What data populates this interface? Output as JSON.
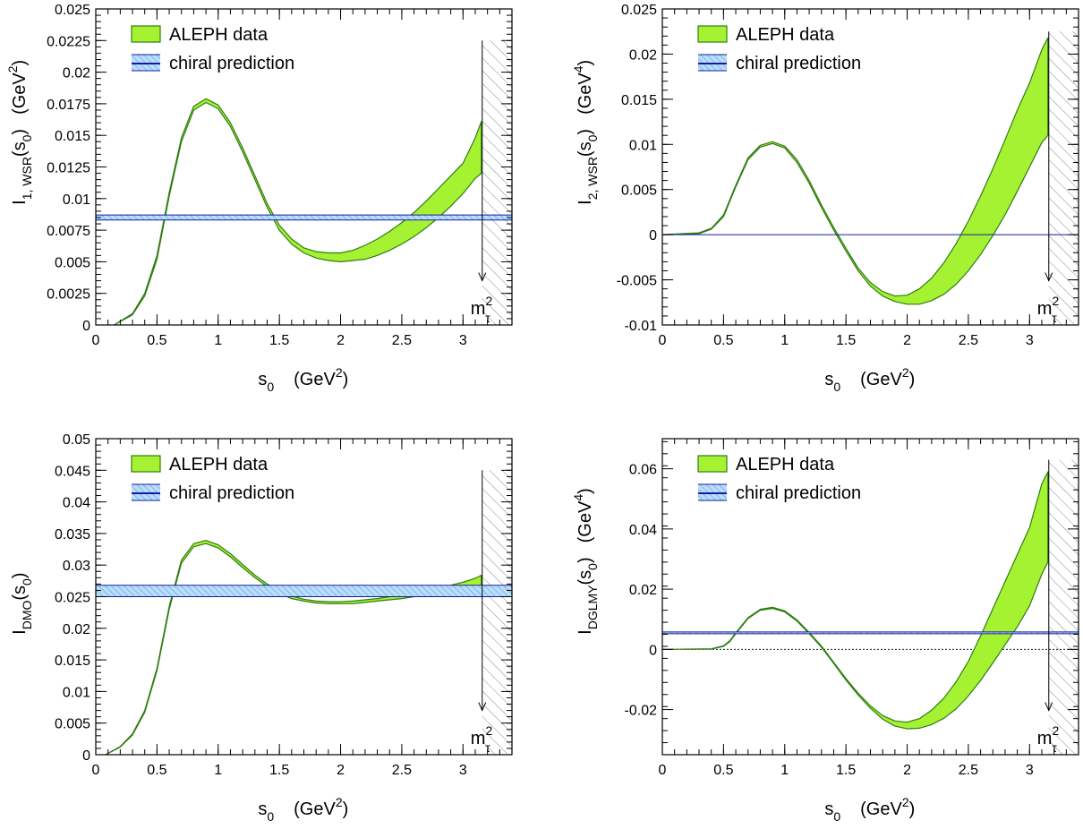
{
  "colors": {
    "band_fill": "#a5f233",
    "band_edge": "#2f7d12",
    "chiral_line": "#1a1a9c",
    "chiral_fill": "#8fc8ff",
    "hatch": "#888888"
  },
  "chart_data": [
    {
      "type": "area",
      "panel": "top-left",
      "ylabel_main": "I",
      "ylabel_sub": "1, WSR",
      "ylabel_arg": "(s",
      "ylabel_arg_sub": "0",
      "ylabel_close": ")",
      "ylabel_unit": "(GeV",
      "ylabel_unit_sup": "2",
      "ylabel_unit_close": ")",
      "xlabel_main": "s",
      "xlabel_sub": "0",
      "xlabel_unit": "(GeV",
      "xlabel_unit_sup": "2",
      "xlabel_unit_close": ")",
      "xlim": [
        0,
        3.4
      ],
      "ylim": [
        0,
        0.025
      ],
      "x_ticks": [
        0,
        0.5,
        1,
        1.5,
        2,
        2.5,
        3
      ],
      "x_tick_labels": [
        "0",
        "0.5",
        "1",
        "1.5",
        "2",
        "2.5",
        "3"
      ],
      "x_minor_step": 0.1,
      "y_ticks": [
        0,
        0.0025,
        0.005,
        0.0075,
        0.01,
        0.0125,
        0.015,
        0.0175,
        0.02,
        0.0225,
        0.025
      ],
      "y_tick_labels": [
        "0",
        "0.0025",
        "0.005",
        "0.0075",
        "0.01",
        "0.0125",
        "0.015",
        "0.0175",
        "0.02",
        "0.0225",
        "0.025"
      ],
      "y_minor_step": 0.0005,
      "legend": {
        "position": "top-left",
        "entries": [
          "ALEPH data",
          "chiral prediction"
        ]
      },
      "series": [
        {
          "name": "ALEPH data",
          "kind": "band",
          "x": [
            0.15,
            0.3,
            0.4,
            0.5,
            0.6,
            0.7,
            0.8,
            0.9,
            1.0,
            1.1,
            1.2,
            1.3,
            1.4,
            1.5,
            1.6,
            1.7,
            1.8,
            1.9,
            2.0,
            2.1,
            2.2,
            2.3,
            2.4,
            2.5,
            2.6,
            2.7,
            2.8,
            2.9,
            3.0,
            3.1,
            3.15
          ],
          "upper": [
            0.0,
            0.0009,
            0.0025,
            0.0055,
            0.0105,
            0.0148,
            0.0173,
            0.0179,
            0.0174,
            0.016,
            0.014,
            0.0118,
            0.0096,
            0.0079,
            0.0068,
            0.0061,
            0.0058,
            0.0057,
            0.0057,
            0.0059,
            0.0063,
            0.0068,
            0.0074,
            0.0081,
            0.0089,
            0.0098,
            0.0108,
            0.0118,
            0.0128,
            0.0148,
            0.0161
          ],
          "lower": [
            0.0,
            0.0008,
            0.0023,
            0.0052,
            0.0102,
            0.0145,
            0.017,
            0.0176,
            0.0171,
            0.0157,
            0.0137,
            0.0115,
            0.0093,
            0.0075,
            0.0064,
            0.0057,
            0.0053,
            0.0051,
            0.005,
            0.0051,
            0.0052,
            0.0055,
            0.0059,
            0.0064,
            0.007,
            0.0077,
            0.0085,
            0.0094,
            0.0104,
            0.0116,
            0.012
          ]
        },
        {
          "name": "chiral prediction",
          "kind": "hband",
          "value": 0.0085,
          "lower": 0.0083,
          "upper": 0.0087
        }
      ],
      "annotation": {
        "text": "m",
        "sup": "2",
        "sub": "τ",
        "x": 3.157,
        "y_top": 0.0225
      }
    },
    {
      "type": "area",
      "panel": "top-right",
      "ylabel_main": "I",
      "ylabel_sub": "2, WSR",
      "ylabel_arg": "(s",
      "ylabel_arg_sub": "0",
      "ylabel_close": ")",
      "ylabel_unit": "(GeV",
      "ylabel_unit_sup": "4",
      "ylabel_unit_close": ")",
      "xlabel_main": "s",
      "xlabel_sub": "0",
      "xlabel_unit": "(GeV",
      "xlabel_unit_sup": "2",
      "xlabel_unit_close": ")",
      "xlim": [
        0,
        3.4
      ],
      "ylim": [
        -0.01,
        0.025
      ],
      "x_ticks": [
        0,
        0.5,
        1,
        1.5,
        2,
        2.5,
        3
      ],
      "x_tick_labels": [
        "0",
        "0.5",
        "1",
        "1.5",
        "2",
        "2.5",
        "3"
      ],
      "x_minor_step": 0.1,
      "y_ticks": [
        -0.01,
        -0.005,
        0,
        0.005,
        0.01,
        0.015,
        0.02,
        0.025
      ],
      "y_tick_labels": [
        "-0.01",
        "-0.005",
        "0",
        "0.005",
        "0.01",
        "0.015",
        "0.02",
        "0.025"
      ],
      "y_minor_step": 0.001,
      "legend": {
        "position": "top-left",
        "entries": [
          "ALEPH data",
          "chiral prediction"
        ]
      },
      "series": [
        {
          "name": "ALEPH data",
          "kind": "band",
          "x": [
            0.0,
            0.3,
            0.4,
            0.5,
            0.6,
            0.7,
            0.8,
            0.9,
            1.0,
            1.1,
            1.2,
            1.3,
            1.4,
            1.5,
            1.6,
            1.7,
            1.8,
            1.9,
            2.0,
            2.1,
            2.2,
            2.3,
            2.4,
            2.5,
            2.6,
            2.7,
            2.8,
            2.9,
            3.0,
            3.1,
            3.15
          ],
          "upper": [
            0.0,
            0.0002,
            0.0007,
            0.0022,
            0.0055,
            0.0085,
            0.0099,
            0.0103,
            0.0098,
            0.0083,
            0.006,
            0.0033,
            0.0008,
            -0.0015,
            -0.0037,
            -0.0053,
            -0.0063,
            -0.0068,
            -0.0067,
            -0.006,
            -0.0048,
            -0.0031,
            -0.001,
            0.0015,
            0.0043,
            0.0073,
            0.0105,
            0.0138,
            0.0168,
            0.0205,
            0.0218
          ],
          "lower": [
            0.0,
            0.0001,
            0.0006,
            0.002,
            0.0053,
            0.0083,
            0.0097,
            0.0101,
            0.0096,
            0.008,
            0.0057,
            0.003,
            0.0005,
            -0.0018,
            -0.004,
            -0.0057,
            -0.0068,
            -0.0074,
            -0.0077,
            -0.0077,
            -0.0073,
            -0.0066,
            -0.0055,
            -0.004,
            -0.0022,
            -0.0001,
            0.0022,
            0.0048,
            0.0075,
            0.0102,
            0.011
          ]
        },
        {
          "name": "chiral prediction",
          "kind": "hband",
          "value": 0.0,
          "lower": 0.0,
          "upper": 0.0
        }
      ],
      "annotation": {
        "text": "m",
        "sup": "2",
        "sub": "τ",
        "x": 3.157,
        "y_top": 0.0225
      }
    },
    {
      "type": "area",
      "panel": "bottom-left",
      "ylabel_main": "I",
      "ylabel_sub": "DMO",
      "ylabel_arg": "(s",
      "ylabel_arg_sub": "0",
      "ylabel_close": ")",
      "ylabel_unit": "",
      "ylabel_unit_sup": "",
      "ylabel_unit_close": "",
      "xlabel_main": "s",
      "xlabel_sub": "0",
      "xlabel_unit": "(GeV",
      "xlabel_unit_sup": "2",
      "xlabel_unit_close": ")",
      "xlim": [
        0,
        3.4
      ],
      "ylim": [
        0,
        0.05
      ],
      "x_ticks": [
        0,
        0.5,
        1,
        1.5,
        2,
        2.5,
        3
      ],
      "x_tick_labels": [
        "0",
        "0.5",
        "1",
        "1.5",
        "2",
        "2.5",
        "3"
      ],
      "x_minor_step": 0.1,
      "y_ticks": [
        0,
        0.005,
        0.01,
        0.015,
        0.02,
        0.025,
        0.03,
        0.035,
        0.04,
        0.045,
        0.05
      ],
      "y_tick_labels": [
        "0",
        "0.005",
        "0.01",
        "0.015",
        "0.02",
        "0.025",
        "0.03",
        "0.035",
        "0.04",
        "0.045",
        "0.05"
      ],
      "y_minor_step": 0.001,
      "legend": {
        "position": "top-left",
        "entries": [
          "ALEPH data",
          "chiral prediction"
        ]
      },
      "series": [
        {
          "name": "ALEPH data",
          "kind": "band",
          "x": [
            0.08,
            0.2,
            0.3,
            0.4,
            0.5,
            0.6,
            0.7,
            0.8,
            0.9,
            1.0,
            1.1,
            1.2,
            1.3,
            1.4,
            1.5,
            1.6,
            1.7,
            1.8,
            1.9,
            2.0,
            2.1,
            2.2,
            2.3,
            2.4,
            2.5,
            2.6,
            2.7,
            2.8,
            2.9,
            3.0,
            3.1,
            3.15
          ],
          "upper": [
            0.0,
            0.0013,
            0.0033,
            0.007,
            0.0137,
            0.0235,
            0.0308,
            0.0334,
            0.0339,
            0.0332,
            0.0318,
            0.0301,
            0.0284,
            0.027,
            0.0259,
            0.0251,
            0.0246,
            0.0243,
            0.0242,
            0.0242,
            0.0243,
            0.0245,
            0.0247,
            0.025,
            0.0253,
            0.0256,
            0.026,
            0.0264,
            0.0268,
            0.0273,
            0.0279,
            0.0284
          ],
          "lower": [
            0.0,
            0.0012,
            0.0031,
            0.0067,
            0.0133,
            0.023,
            0.0303,
            0.0329,
            0.0334,
            0.0327,
            0.0313,
            0.0296,
            0.028,
            0.0266,
            0.0255,
            0.0247,
            0.0243,
            0.024,
            0.0239,
            0.0239,
            0.0239,
            0.0241,
            0.0243,
            0.0245,
            0.0247,
            0.025,
            0.0253,
            0.0256,
            0.0259,
            0.0262,
            0.0265,
            0.0266
          ]
        },
        {
          "name": "chiral prediction",
          "kind": "hband",
          "value": 0.0258,
          "lower": 0.025,
          "upper": 0.0268
        }
      ],
      "annotation": {
        "text": "m",
        "sup": "2",
        "sub": "τ",
        "x": 3.157,
        "y_top": 0.045
      }
    },
    {
      "type": "area",
      "panel": "bottom-right",
      "ylabel_main": "I",
      "ylabel_sub": "DGLMY",
      "ylabel_arg": "(s",
      "ylabel_arg_sub": "0",
      "ylabel_close": ")",
      "ylabel_unit": "(GeV",
      "ylabel_unit_sup": "4",
      "ylabel_unit_close": ")",
      "xlabel_main": "s",
      "xlabel_sub": "0",
      "xlabel_unit": "(GeV",
      "xlabel_unit_sup": "2",
      "xlabel_unit_close": ")",
      "xlim": [
        0,
        3.4
      ],
      "ylim": [
        -0.035,
        0.07
      ],
      "x_ticks": [
        0,
        0.5,
        1,
        1.5,
        2,
        2.5,
        3
      ],
      "x_tick_labels": [
        "0",
        "0.5",
        "1",
        "1.5",
        "2",
        "2.5",
        "3"
      ],
      "x_minor_step": 0.1,
      "y_ticks": [
        -0.02,
        0,
        0.02,
        0.04,
        0.06
      ],
      "y_tick_labels": [
        "-0.02",
        "0",
        "0.02",
        "0.04",
        "0.06"
      ],
      "y_minor_step": 0.004,
      "legend": {
        "position": "top-left",
        "entries": [
          "ALEPH data",
          "chiral prediction"
        ]
      },
      "zero_line": true,
      "series": [
        {
          "name": "ALEPH data",
          "kind": "band",
          "x": [
            0.0,
            0.4,
            0.5,
            0.55,
            0.6,
            0.7,
            0.8,
            0.9,
            1.0,
            1.1,
            1.2,
            1.3,
            1.4,
            1.5,
            1.6,
            1.7,
            1.8,
            1.9,
            2.0,
            2.1,
            2.2,
            2.3,
            2.4,
            2.5,
            2.6,
            2.7,
            2.8,
            2.9,
            3.0,
            3.1,
            3.15
          ],
          "upper": [
            0.0,
            0.0002,
            0.0012,
            0.0028,
            0.0055,
            0.0105,
            0.0133,
            0.014,
            0.0128,
            0.0098,
            0.0056,
            0.0011,
            -0.0043,
            -0.0097,
            -0.0146,
            -0.0188,
            -0.022,
            -0.0238,
            -0.0242,
            -0.023,
            -0.0202,
            -0.0162,
            -0.0108,
            -0.004,
            0.0045,
            0.0135,
            0.0225,
            0.0315,
            0.0405,
            0.055,
            0.059
          ],
          "lower": [
            0.0,
            0.0001,
            0.001,
            0.0025,
            0.0052,
            0.0102,
            0.013,
            0.0136,
            0.0124,
            0.0094,
            0.0052,
            0.0007,
            -0.0047,
            -0.0102,
            -0.0152,
            -0.0196,
            -0.0232,
            -0.0255,
            -0.0264,
            -0.0262,
            -0.025,
            -0.0229,
            -0.0198,
            -0.0155,
            -0.0103,
            -0.0045,
            0.0015,
            0.0075,
            0.0145,
            0.025,
            0.029
          ]
        },
        {
          "name": "chiral prediction",
          "kind": "hband",
          "value": 0.0055,
          "lower": 0.0052,
          "upper": 0.0058
        }
      ],
      "annotation": {
        "text": "m",
        "sup": "2",
        "sub": "τ",
        "x": 3.157,
        "y_top": 0.063
      }
    }
  ]
}
